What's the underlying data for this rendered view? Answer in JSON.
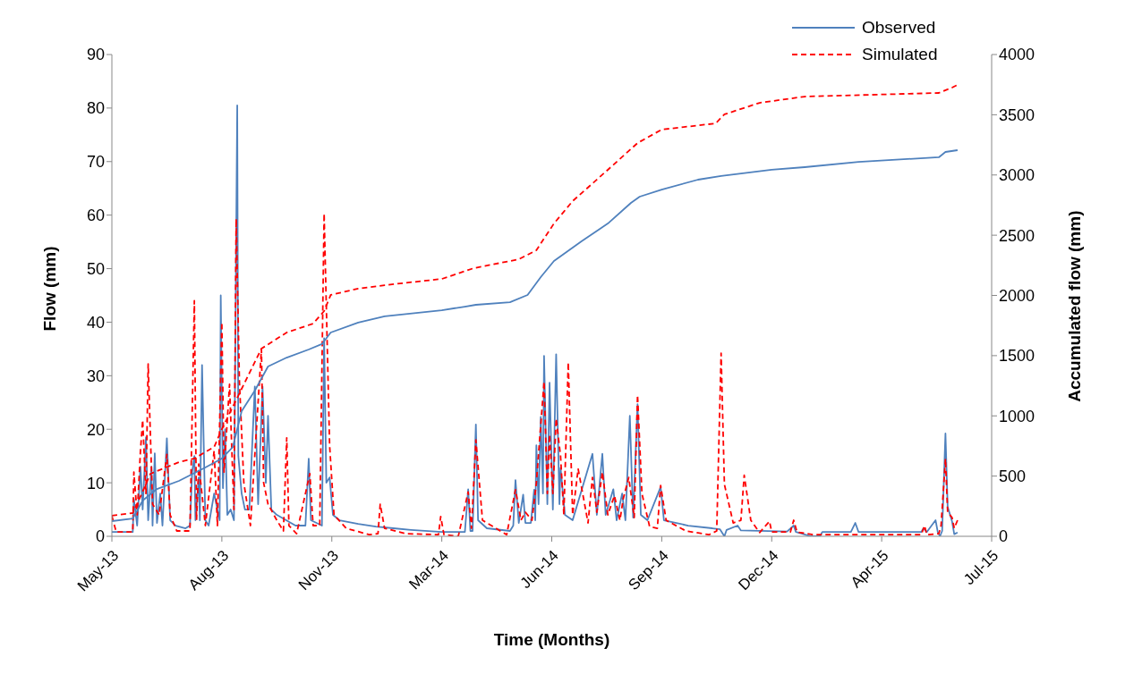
{
  "chart_data": {
    "type": "line",
    "xlabel": "Time (Months)",
    "ylabel": "Flow (mm)",
    "y2label": "Accumulated flow (mm)",
    "xlim": [
      "2013-05-10",
      "2015-07-19"
    ],
    "xticks": [
      {
        "value": "2013-05-10",
        "label": "May-13"
      },
      {
        "value": "2013-08-18",
        "label": "Aug-13"
      },
      {
        "value": "2013-11-26",
        "label": "Nov-13"
      },
      {
        "value": "2014-03-06",
        "label": "Mar-14"
      },
      {
        "value": "2014-06-14",
        "label": "Jun-14"
      },
      {
        "value": "2014-09-22",
        "label": "Sep-14"
      },
      {
        "value": "2014-12-31",
        "label": "Dec-14"
      },
      {
        "value": "2015-04-10",
        "label": "Apr-15"
      },
      {
        "value": "2015-07-19",
        "label": "Jul-15"
      }
    ],
    "ylim": [
      0,
      90
    ],
    "yticks": [
      0,
      10,
      20,
      30,
      40,
      50,
      60,
      70,
      80,
      90
    ],
    "y2lim": [
      0,
      4000
    ],
    "y2ticks": [
      0,
      500,
      1000,
      1500,
      2000,
      2500,
      3000,
      3500,
      4000
    ],
    "legend": "top right",
    "marker": "none",
    "series": [
      {
        "name": "Observed",
        "color": "#4f81bd",
        "line_style": "solid",
        "x": [
          "2013-05-10",
          "2013-05-29",
          "2013-05-30",
          "2013-06-02",
          "2013-06-05",
          "2013-06-07",
          "2013-06-10",
          "2013-06-12",
          "2013-06-15",
          "2013-06-16",
          "2013-06-18",
          "2013-06-20",
          "2013-06-23",
          "2013-06-25",
          "2013-06-29",
          "2013-07-02",
          "2013-07-07",
          "2013-07-16",
          "2013-07-20",
          "2013-07-22",
          "2013-07-24",
          "2013-07-25",
          "2013-07-28",
          "2013-07-29",
          "2013-07-31",
          "2013-08-03",
          "2013-08-06",
          "2013-08-11",
          "2013-08-16",
          "2013-08-17",
          "2013-08-19",
          "2013-08-21",
          "2013-08-23",
          "2013-08-26",
          "2013-08-29",
          "2013-09-01",
          "2013-09-02",
          "2013-09-05",
          "2013-09-08",
          "2013-09-12",
          "2013-09-17",
          "2013-09-20",
          "2013-09-24",
          "2013-09-27",
          "2013-09-29",
          "2013-10-02",
          "2013-10-07",
          "2013-10-24",
          "2013-11-02",
          "2013-11-05",
          "2013-11-07",
          "2013-11-17",
          "2013-11-19",
          "2013-11-21",
          "2013-11-24",
          "2013-11-27",
          "2013-12-03",
          "2013-12-20",
          "2014-01-05",
          "2014-01-21",
          "2014-02-06",
          "2014-03-06",
          "2014-03-27",
          "2014-03-30",
          "2014-04-01",
          "2014-04-03",
          "2014-04-06",
          "2014-04-08",
          "2014-04-16",
          "2014-05-07",
          "2014-05-10",
          "2014-05-12",
          "2014-05-15",
          "2014-05-19",
          "2014-05-21",
          "2014-05-26",
          "2014-05-29",
          "2014-05-30",
          "2014-05-31",
          "2014-06-02",
          "2014-06-04",
          "2014-06-06",
          "2014-06-07",
          "2014-06-10",
          "2014-06-12",
          "2014-06-15",
          "2014-06-18",
          "2014-06-21",
          "2014-06-22",
          "2014-06-26",
          "2014-07-03",
          "2014-07-21",
          "2014-07-25",
          "2014-07-30",
          "2014-08-02",
          "2014-08-09",
          "2014-08-12",
          "2014-08-17",
          "2014-08-20",
          "2014-08-24",
          "2014-08-27",
          "2014-08-31",
          "2014-09-03",
          "2014-09-09",
          "2014-09-21",
          "2014-09-24",
          "2014-10-16",
          "2014-11-07",
          "2014-11-14",
          "2014-11-18",
          "2014-11-20",
          "2014-11-30",
          "2014-12-03",
          "2015-01-14",
          "2015-01-20",
          "2015-01-22",
          "2015-02-05",
          "2015-02-13",
          "2015-02-15",
          "2015-03-13",
          "2015-03-17",
          "2015-03-20",
          "2015-05-16",
          "2015-05-18",
          "2015-05-21",
          "2015-05-29",
          "2015-05-31",
          "2015-06-02",
          "2015-06-04",
          "2015-06-07",
          "2015-06-09",
          "2015-06-13",
          "2015-06-15",
          "2015-06-18"
        ],
        "values": [
          0.8,
          0.8,
          7,
          2,
          13,
          5,
          18.5,
          3,
          13,
          2,
          15.5,
          2.5,
          8,
          2,
          18.3,
          3,
          2,
          1.5,
          2,
          12,
          15,
          3,
          11,
          3,
          32,
          3,
          2,
          8,
          3,
          45,
          9,
          20,
          4,
          5,
          3,
          80.5,
          15,
          8,
          5,
          5,
          28,
          6,
          28,
          10,
          22.5,
          5,
          4,
          2,
          2,
          14.5,
          3,
          2,
          37,
          10,
          11,
          4,
          3,
          2.3,
          1.8,
          1.5,
          1.2,
          0.8,
          0.8,
          8.8,
          1,
          1,
          20.9,
          3,
          1.5,
          1,
          2,
          10.5,
          2.5,
          7.8,
          2.5,
          2.5,
          8.7,
          3,
          17,
          6,
          22.3,
          8,
          33.7,
          6,
          28.7,
          5,
          34,
          6,
          12.8,
          4,
          3,
          15.4,
          4,
          15.4,
          4,
          8.8,
          3,
          8,
          3,
          22.5,
          3.5,
          24.7,
          4,
          3,
          9.2,
          3,
          2,
          1.5,
          1.3,
          0,
          1.2,
          2,
          1.1,
          0.9,
          2,
          0.8,
          0,
          0,
          0.8,
          0.8,
          2.5,
          0.8,
          0.8,
          1.5,
          0.8,
          3,
          0.8,
          0,
          1,
          19.2,
          5.5,
          2.8,
          0.4,
          0.7
        ]
      },
      {
        "name": "Simulated",
        "color": "#ff0000",
        "line_style": "dashed",
        "x": [
          "2013-05-10",
          "2013-05-14",
          "2013-05-29",
          "2013-05-30",
          "2013-06-02",
          "2013-06-05",
          "2013-06-07",
          "2013-06-10",
          "2013-06-12",
          "2013-06-16",
          "2013-06-22",
          "2013-06-29",
          "2013-07-02",
          "2013-07-08",
          "2013-07-20",
          "2013-07-24",
          "2013-07-26",
          "2013-07-28",
          "2013-08-03",
          "2013-08-11",
          "2013-08-14",
          "2013-08-18",
          "2013-08-20",
          "2013-08-25",
          "2013-08-29",
          "2013-08-31",
          "2013-09-03",
          "2013-09-07",
          "2013-09-13",
          "2013-09-23",
          "2013-09-25",
          "2013-09-29",
          "2013-10-07",
          "2013-10-13",
          "2013-10-16",
          "2013-10-18",
          "2013-10-25",
          "2013-11-06",
          "2013-11-09",
          "2013-11-15",
          "2013-11-19",
          "2013-11-24",
          "2013-11-28",
          "2013-12-09",
          "2013-12-30",
          "2014-01-07",
          "2014-01-09",
          "2014-01-13",
          "2014-02-01",
          "2014-03-03",
          "2014-03-05",
          "2014-03-08",
          "2014-03-21",
          "2014-03-30",
          "2014-04-02",
          "2014-04-06",
          "2014-04-12",
          "2014-05-04",
          "2014-05-12",
          "2014-05-17",
          "2014-05-21",
          "2014-05-27",
          "2014-05-31",
          "2014-06-07",
          "2014-06-10",
          "2014-06-12",
          "2014-06-15",
          "2014-06-18",
          "2014-06-22",
          "2014-06-25",
          "2014-06-29",
          "2014-07-03",
          "2014-07-08",
          "2014-07-17",
          "2014-07-21",
          "2014-07-25",
          "2014-07-30",
          "2014-08-04",
          "2014-08-10",
          "2014-08-15",
          "2014-08-18",
          "2014-08-23",
          "2014-08-28",
          "2014-08-31",
          "2014-09-04",
          "2014-09-11",
          "2014-09-18",
          "2014-09-21",
          "2014-09-26",
          "2014-10-14",
          "2014-11-04",
          "2014-11-11",
          "2014-11-15",
          "2014-11-18",
          "2014-11-26",
          "2014-12-03",
          "2014-12-06",
          "2014-12-12",
          "2014-12-20",
          "2014-12-29",
          "2014-12-31",
          "2015-01-17",
          "2015-01-20",
          "2015-01-23",
          "2015-02-07",
          "2015-05-16",
          "2015-05-19",
          "2015-05-21",
          "2015-06-01",
          "2015-06-03",
          "2015-06-07",
          "2015-06-09",
          "2015-06-13",
          "2015-06-15",
          "2015-06-18"
        ],
        "values": [
          3.8,
          0.8,
          0.8,
          12,
          4,
          16,
          21.7,
          8,
          32.2,
          6,
          4,
          15.3,
          4,
          1,
          1,
          44,
          3,
          13.5,
          2,
          16,
          2,
          40,
          12,
          28.4,
          5,
          59.3,
          28.9,
          10,
          2,
          35,
          10,
          6,
          3,
          1,
          18.4,
          2,
          0.5,
          11.7,
          2,
          2,
          60.3,
          17,
          4,
          1.5,
          0.3,
          0.5,
          6,
          1.5,
          0.5,
          0.3,
          3.7,
          0.3,
          0,
          8.3,
          1.5,
          18,
          3,
          0.3,
          8.7,
          3,
          4.5,
          3,
          10,
          28.9,
          8,
          19,
          8,
          22,
          15,
          4,
          32.5,
          4,
          12.6,
          2.5,
          11,
          4.5,
          12,
          4,
          7.6,
          3,
          7,
          11,
          3.5,
          26.4,
          8,
          1.8,
          1.5,
          9.5,
          3,
          1,
          0.3,
          1,
          34.2,
          9.7,
          2.5,
          3,
          11.4,
          3,
          0.7,
          2.8,
          0.8,
          0.8,
          3,
          0.8,
          0.3,
          0.3,
          2,
          0.3,
          0.5,
          2,
          14.5,
          4.5,
          3.5,
          1.5,
          3
        ]
      },
      {
        "color": "#4f81bd",
        "line_style": "solid",
        "axis": "y2",
        "x": [
          "2013-05-10",
          "2013-05-29",
          "2013-06-07",
          "2013-06-20",
          "2013-07-10",
          "2013-08-03",
          "2013-08-18",
          "2013-08-28",
          "2013-09-05",
          "2013-09-17",
          "2013-09-29",
          "2013-10-16",
          "2013-11-05",
          "2013-11-17",
          "2013-11-25",
          "2013-12-20",
          "2014-01-13",
          "2014-03-06",
          "2014-03-27",
          "2014-04-06",
          "2014-05-07",
          "2014-05-23",
          "2014-06-04",
          "2014-06-16",
          "2014-07-11",
          "2014-08-04",
          "2014-08-25",
          "2014-09-02",
          "2014-09-22",
          "2014-10-25",
          "2014-11-15",
          "2014-12-31",
          "2015-01-30",
          "2015-03-20",
          "2015-06-01",
          "2015-06-07",
          "2015-06-18"
        ],
        "values": [
          126,
          148,
          297,
          393,
          460,
          571,
          646,
          742,
          1039,
          1210,
          1410,
          1484,
          1551,
          1596,
          1692,
          1774,
          1826,
          1877,
          1907,
          1922,
          1944,
          2004,
          2152,
          2286,
          2449,
          2597,
          2768,
          2820,
          2879,
          2961,
          2991,
          3043,
          3065,
          3109,
          3147,
          3191,
          3206
        ]
      },
      {
        "color": "#ff0000",
        "line_style": "dashed",
        "axis": "y2",
        "x": [
          "2013-05-10",
          "2013-05-29",
          "2013-06-07",
          "2013-06-14",
          "2013-07-10",
          "2013-07-24",
          "2013-08-11",
          "2013-08-18",
          "2013-09-01",
          "2013-09-23",
          "2013-10-16",
          "2013-11-09",
          "2013-11-19",
          "2013-11-25",
          "2013-12-20",
          "2014-01-13",
          "2014-03-06",
          "2014-04-04",
          "2014-05-15",
          "2014-05-31",
          "2014-06-16",
          "2014-07-03",
          "2014-08-04",
          "2014-08-31",
          "2014-09-22",
          "2014-11-10",
          "2014-11-18",
          "2014-12-20",
          "2015-01-30",
          "2015-06-01",
          "2015-06-13",
          "2015-06-18"
        ],
        "values": [
          171,
          193,
          371,
          519,
          616,
          646,
          742,
          890,
          1150,
          1558,
          1692,
          1766,
          1870,
          2004,
          2056,
          2085,
          2137,
          2226,
          2300,
          2375,
          2597,
          2783,
          3043,
          3265,
          3377,
          3428,
          3503,
          3599,
          3651,
          3681,
          3725,
          3748
        ]
      }
    ]
  }
}
